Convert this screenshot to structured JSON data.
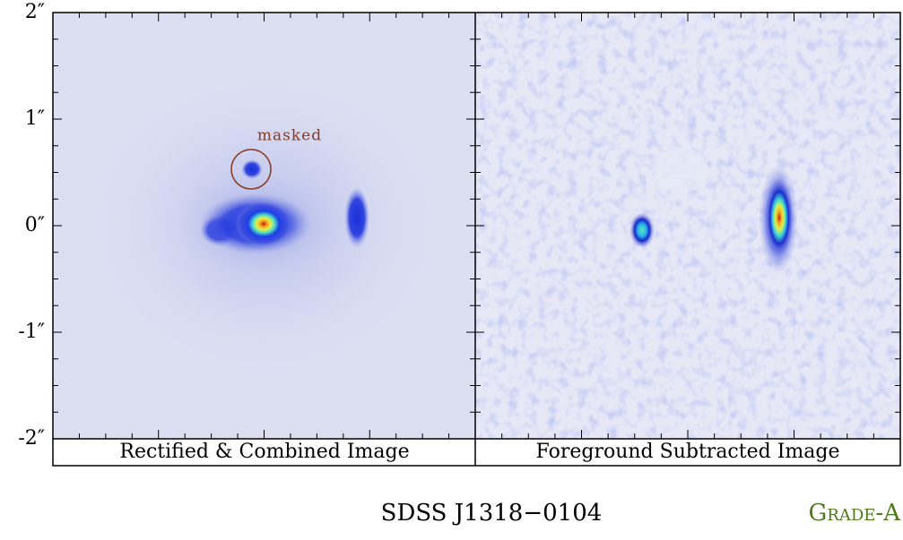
{
  "axis": {
    "ticks": [
      "2″",
      "1″",
      "0″",
      "-1″",
      "-2″"
    ]
  },
  "panels": [
    {
      "caption": "Rectified & Combined Image",
      "annotation": "masked"
    },
    {
      "caption": "Foreground Subtracted Image"
    }
  ],
  "footer": {
    "name": "SDSS J1318−0104",
    "grade": "Grade-A"
  }
}
